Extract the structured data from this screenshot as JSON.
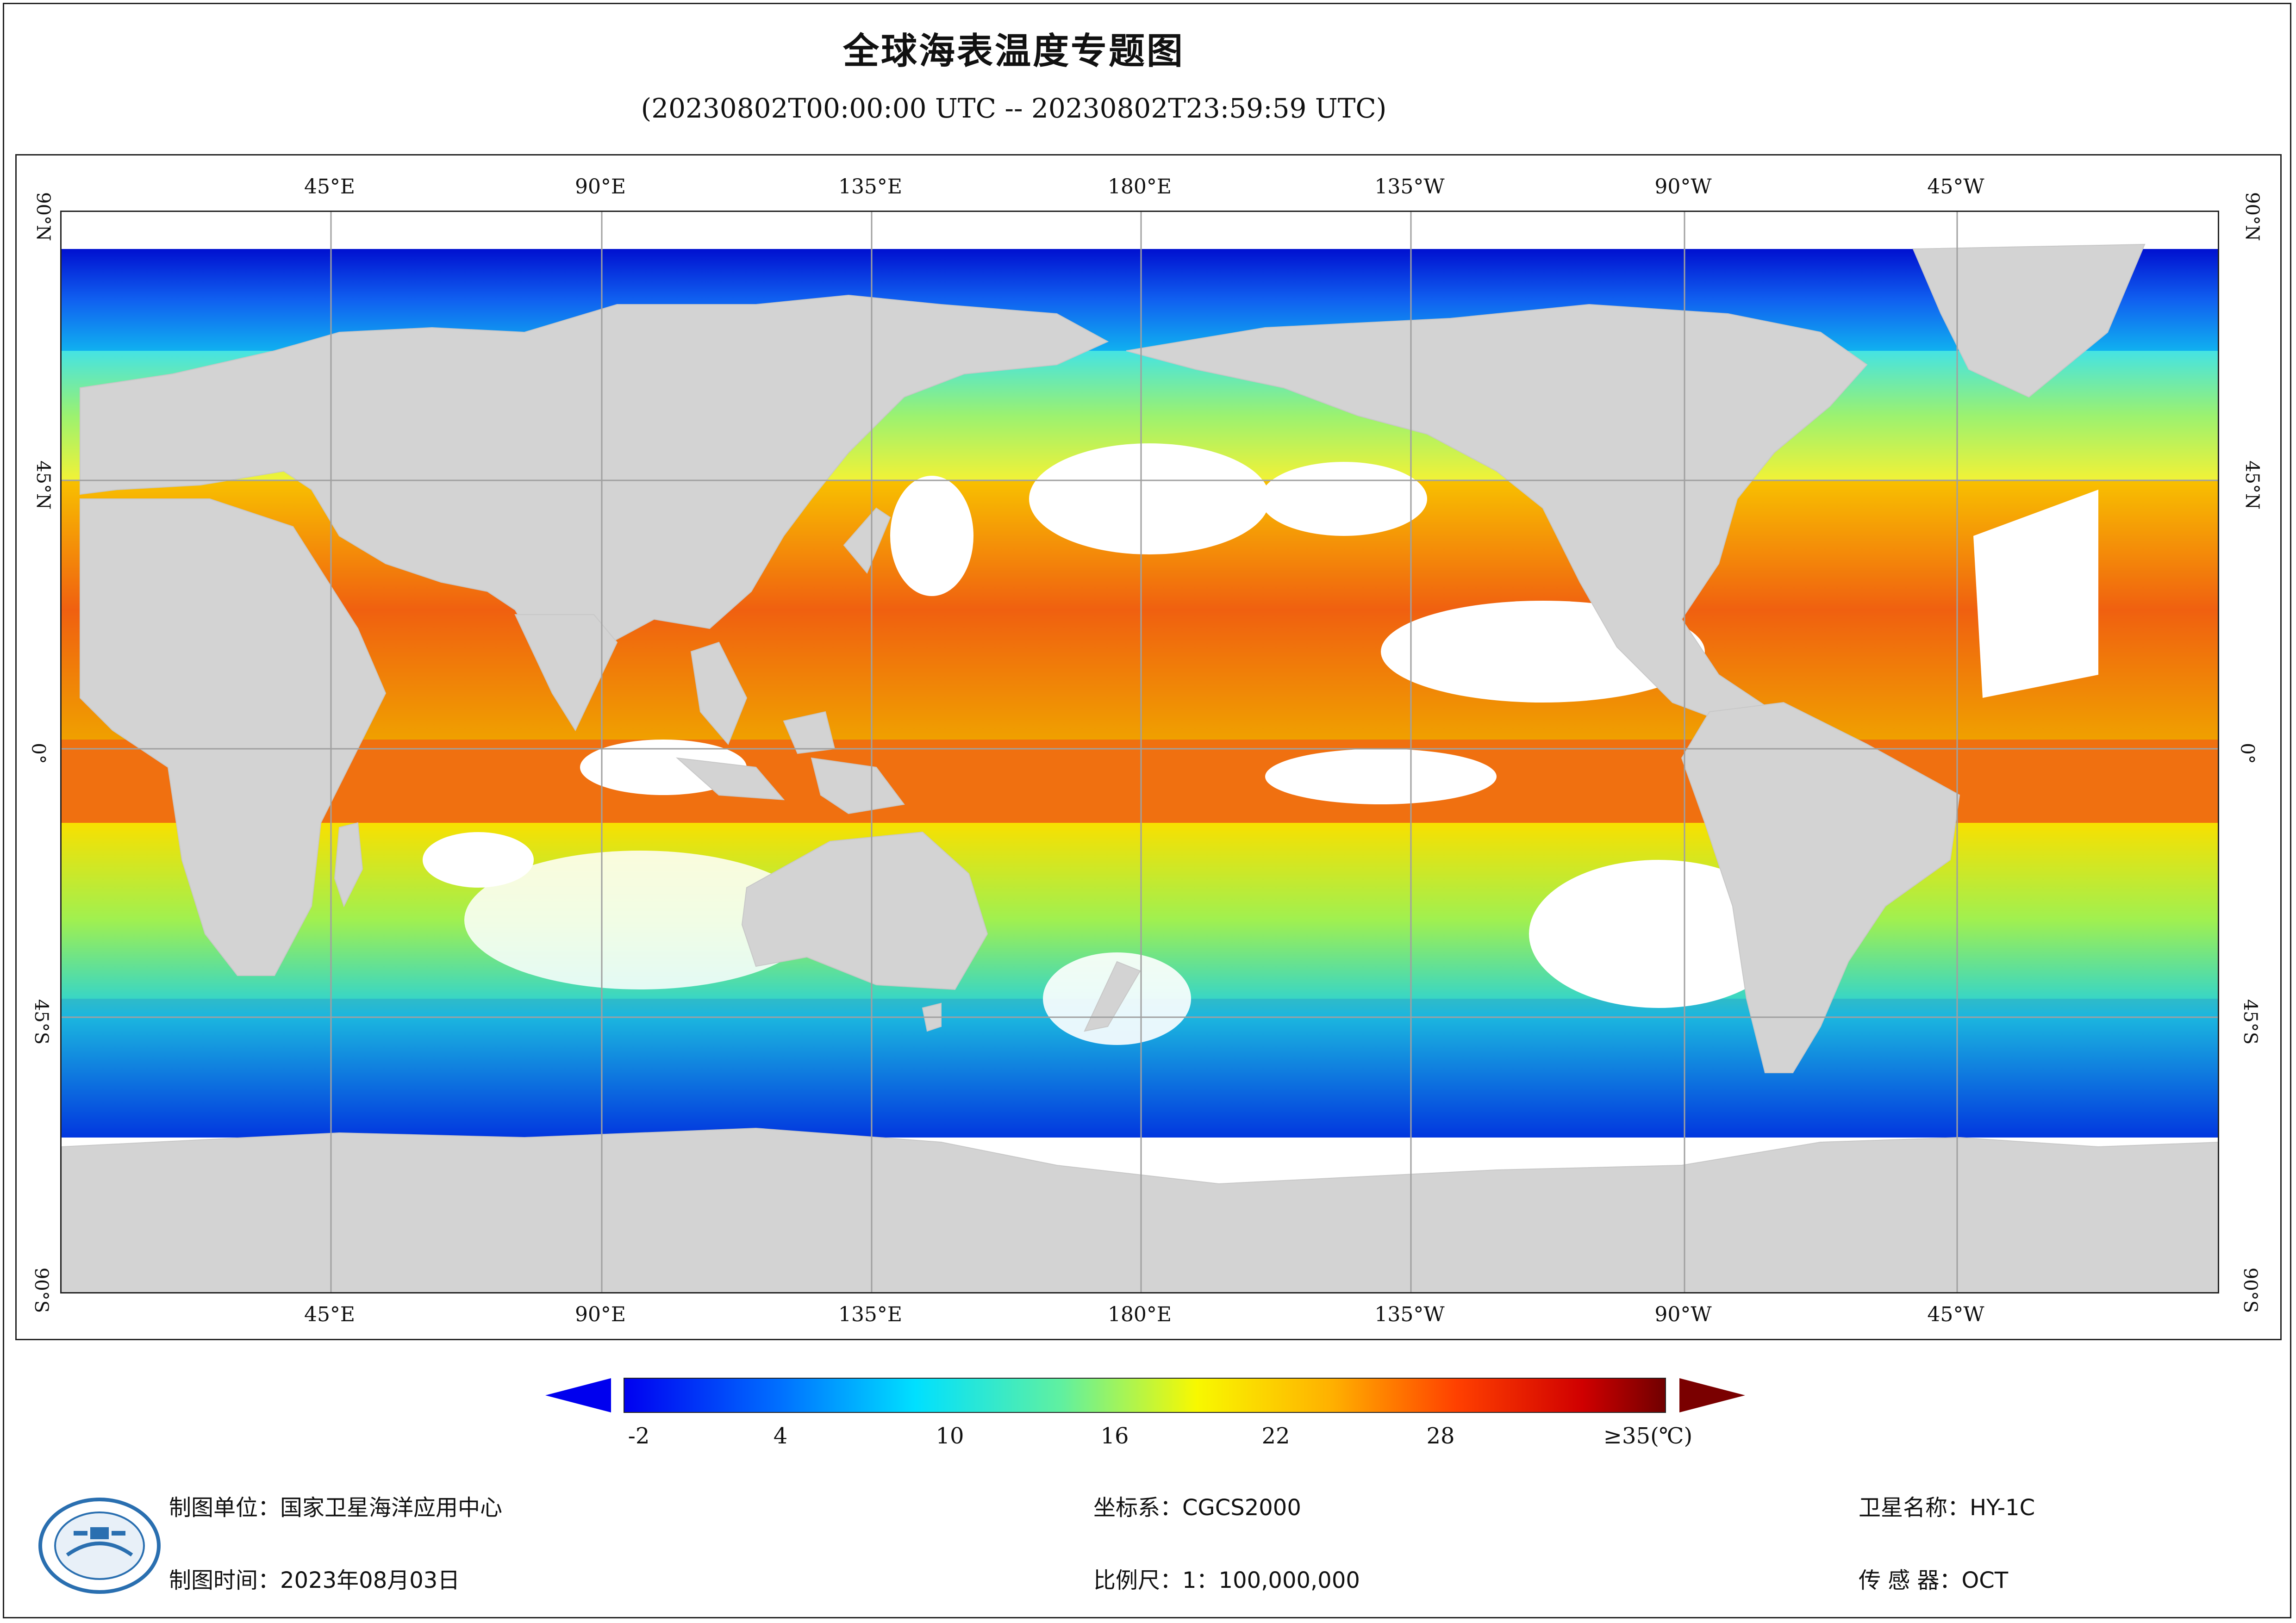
{
  "title": "全球海表温度专题图",
  "subtitle": "(20230802T00:00:00 UTC -- 20230802T23:59:59 UTC)",
  "map": {
    "top_lon_labels": [
      "45°E",
      "90°E",
      "135°E",
      "180°E",
      "135°W",
      "90°W",
      "45°W"
    ],
    "bottom_lon_labels": [
      "45°E",
      "90°E",
      "135°E",
      "180°E",
      "135°W",
      "90°W",
      "45°W"
    ],
    "lat_labels": [
      "90°N",
      "45°N",
      "0°",
      "45°S",
      "90°S"
    ],
    "colors": {
      "land": "#d3d3d3",
      "nodata": "#ffffff",
      "grid": "#a0a0a0"
    }
  },
  "colorbar": {
    "ticks": [
      "-2",
      "4",
      "10",
      "16",
      "22",
      "28",
      "≥35(℃)"
    ],
    "min_arrow_color": "#0000ee",
    "max_arrow_color": "#7a0000"
  },
  "footer": {
    "producer": "制图单位：国家卫星海洋应用中心",
    "date": "制图时间：2023年08月03日",
    "crs": "坐标系：CGCS2000",
    "scale": "比例尺：1：100,000,000",
    "satellite": "卫星名称：HY-1C",
    "sensor": "传 感 器：OCT",
    "logo_icon": "nsoas-logo-icon"
  }
}
